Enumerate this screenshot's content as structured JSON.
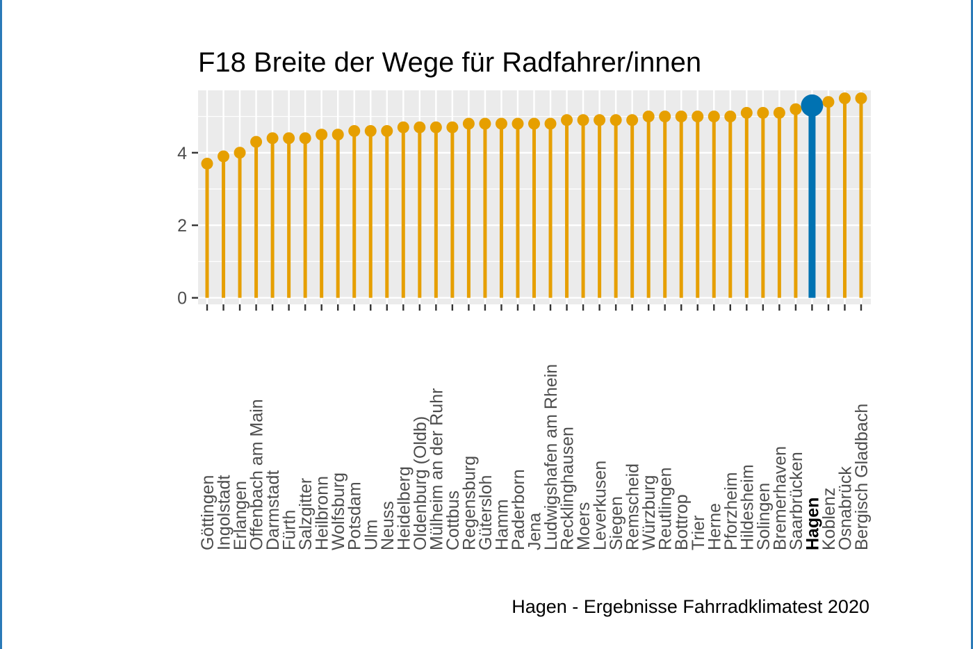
{
  "chart_data": {
    "type": "lollipop",
    "title": "F18 Breite der Wege für Radfahrer/innen",
    "caption": "Hagen - Ergebnisse Fahrradklimatest 2020",
    "xlabel": "",
    "ylabel": "",
    "ylim": [
      -0.18,
      5.72
    ],
    "yticks": [
      0,
      2,
      4
    ],
    "grid": true,
    "highlight": "Hagen",
    "colors": {
      "default": "#E69F00",
      "highlight": "#0072B2",
      "panel": "#EBEBEB",
      "grid": "#FFFFFF"
    },
    "categories": [
      "Göttingen",
      "Ingolstadt",
      "Erlangen",
      "Offenbach am Main",
      "Darmstadt",
      "Fürth",
      "Salzgitter",
      "Heilbronn",
      "Wolfsburg",
      "Potsdam",
      "Ulm",
      "Neuss",
      "Heidelberg",
      "Oldenburg (Oldb)",
      "Mülheim an der Ruhr",
      "Cottbus",
      "Regensburg",
      "Gütersloh",
      "Hamm",
      "Paderborn",
      "Jena",
      "Ludwigshafen am Rhein",
      "Recklinghausen",
      "Moers",
      "Leverkusen",
      "Siegen",
      "Remscheid",
      "Würzburg",
      "Reutlingen",
      "Bottrop",
      "Trier",
      "Herne",
      "Pforzheim",
      "Hildesheim",
      "Solingen",
      "Bremerhaven",
      "Saarbrücken",
      "Hagen",
      "Koblenz",
      "Osnabrück",
      "Bergisch Gladbach"
    ],
    "values": [
      3.7,
      3.9,
      4.0,
      4.3,
      4.4,
      4.4,
      4.4,
      4.5,
      4.5,
      4.6,
      4.6,
      4.6,
      4.7,
      4.7,
      4.7,
      4.7,
      4.8,
      4.8,
      4.8,
      4.8,
      4.8,
      4.8,
      4.9,
      4.9,
      4.9,
      4.9,
      4.9,
      5.0,
      5.0,
      5.0,
      5.0,
      5.0,
      5.0,
      5.1,
      5.1,
      5.1,
      5.2,
      5.3,
      5.4,
      5.5,
      5.5
    ]
  }
}
